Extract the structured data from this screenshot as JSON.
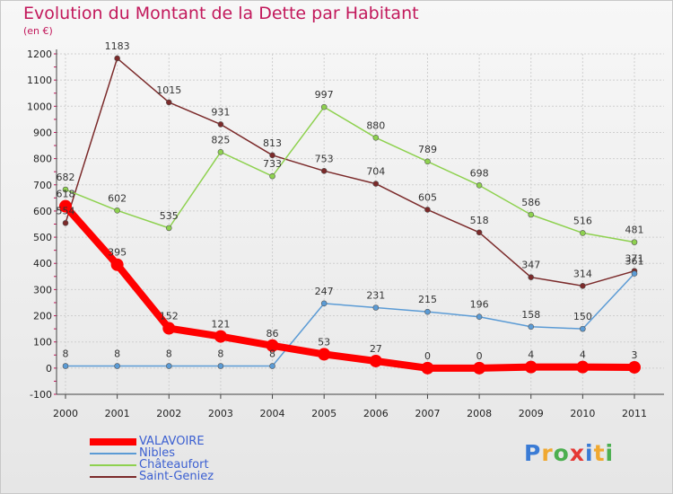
{
  "header": {
    "title": "Evolution du Montant de la Dette par Habitant",
    "subtitle": "(en €)"
  },
  "colors": {
    "title": "#c2185b",
    "grid": "#cfcfcf",
    "axis": "#444444"
  },
  "logo": {
    "letters": [
      "P",
      "r",
      "o",
      "x",
      "i",
      "t",
      "i"
    ],
    "colors": [
      "#3a7bd5",
      "#f0a830",
      "#4caf50",
      "#e53935",
      "#3a7bd5",
      "#f0a830",
      "#4caf50"
    ]
  },
  "chart_data": {
    "type": "line",
    "title": "Evolution du Montant de la Dette par Habitant",
    "subtitle": "(en €)",
    "x": [
      "2000",
      "2001",
      "2002",
      "2003",
      "2004",
      "2005",
      "2006",
      "2007",
      "2008",
      "2009",
      "2010",
      "2011"
    ],
    "ylim": [
      -100,
      1200
    ],
    "yticks": [
      -100,
      0,
      100,
      200,
      300,
      400,
      500,
      600,
      700,
      800,
      900,
      1000,
      1100,
      1200
    ],
    "grid": true,
    "legend_position": "bottom-left",
    "series": [
      {
        "name": "VALAVOIRE",
        "color": "#ff0000",
        "width": 8,
        "marker": 7,
        "values": [
          618,
          395,
          152,
          121,
          86,
          53,
          27,
          0,
          0,
          4,
          4,
          3
        ],
        "labels": [
          "618",
          "395",
          "152",
          "121",
          "86",
          "53",
          "27",
          "0",
          "0",
          "4",
          "4",
          "3"
        ]
      },
      {
        "name": "Nibles",
        "color": "#5b9bd5",
        "width": 1.5,
        "marker": 3,
        "values": [
          8,
          8,
          8,
          8,
          8,
          247,
          231,
          215,
          196,
          158,
          150,
          361
        ],
        "labels": [
          "8",
          "8",
          "8",
          "8",
          "8",
          "247",
          "231",
          "215",
          "196",
          "158",
          "150",
          "361"
        ]
      },
      {
        "name": "Châteaufort",
        "color": "#8ed14f",
        "width": 1.5,
        "marker": 3,
        "values": [
          682,
          602,
          535,
          825,
          733,
          997,
          880,
          789,
          698,
          586,
          516,
          481
        ],
        "labels": [
          "682",
          "602",
          "535",
          "825",
          "733",
          "997",
          "880",
          "789",
          "698",
          "586",
          "516",
          "481"
        ]
      },
      {
        "name": "Saint-Geniez",
        "color": "#7b2a2a",
        "width": 1.5,
        "marker": 3,
        "values": [
          554,
          1183,
          1015,
          931,
          813,
          753,
          704,
          605,
          518,
          347,
          314,
          371
        ],
        "labels": [
          "554",
          "1183",
          "1015",
          "931",
          "813",
          "753",
          "704",
          "605",
          "518",
          "347",
          "314",
          "371"
        ]
      }
    ]
  }
}
